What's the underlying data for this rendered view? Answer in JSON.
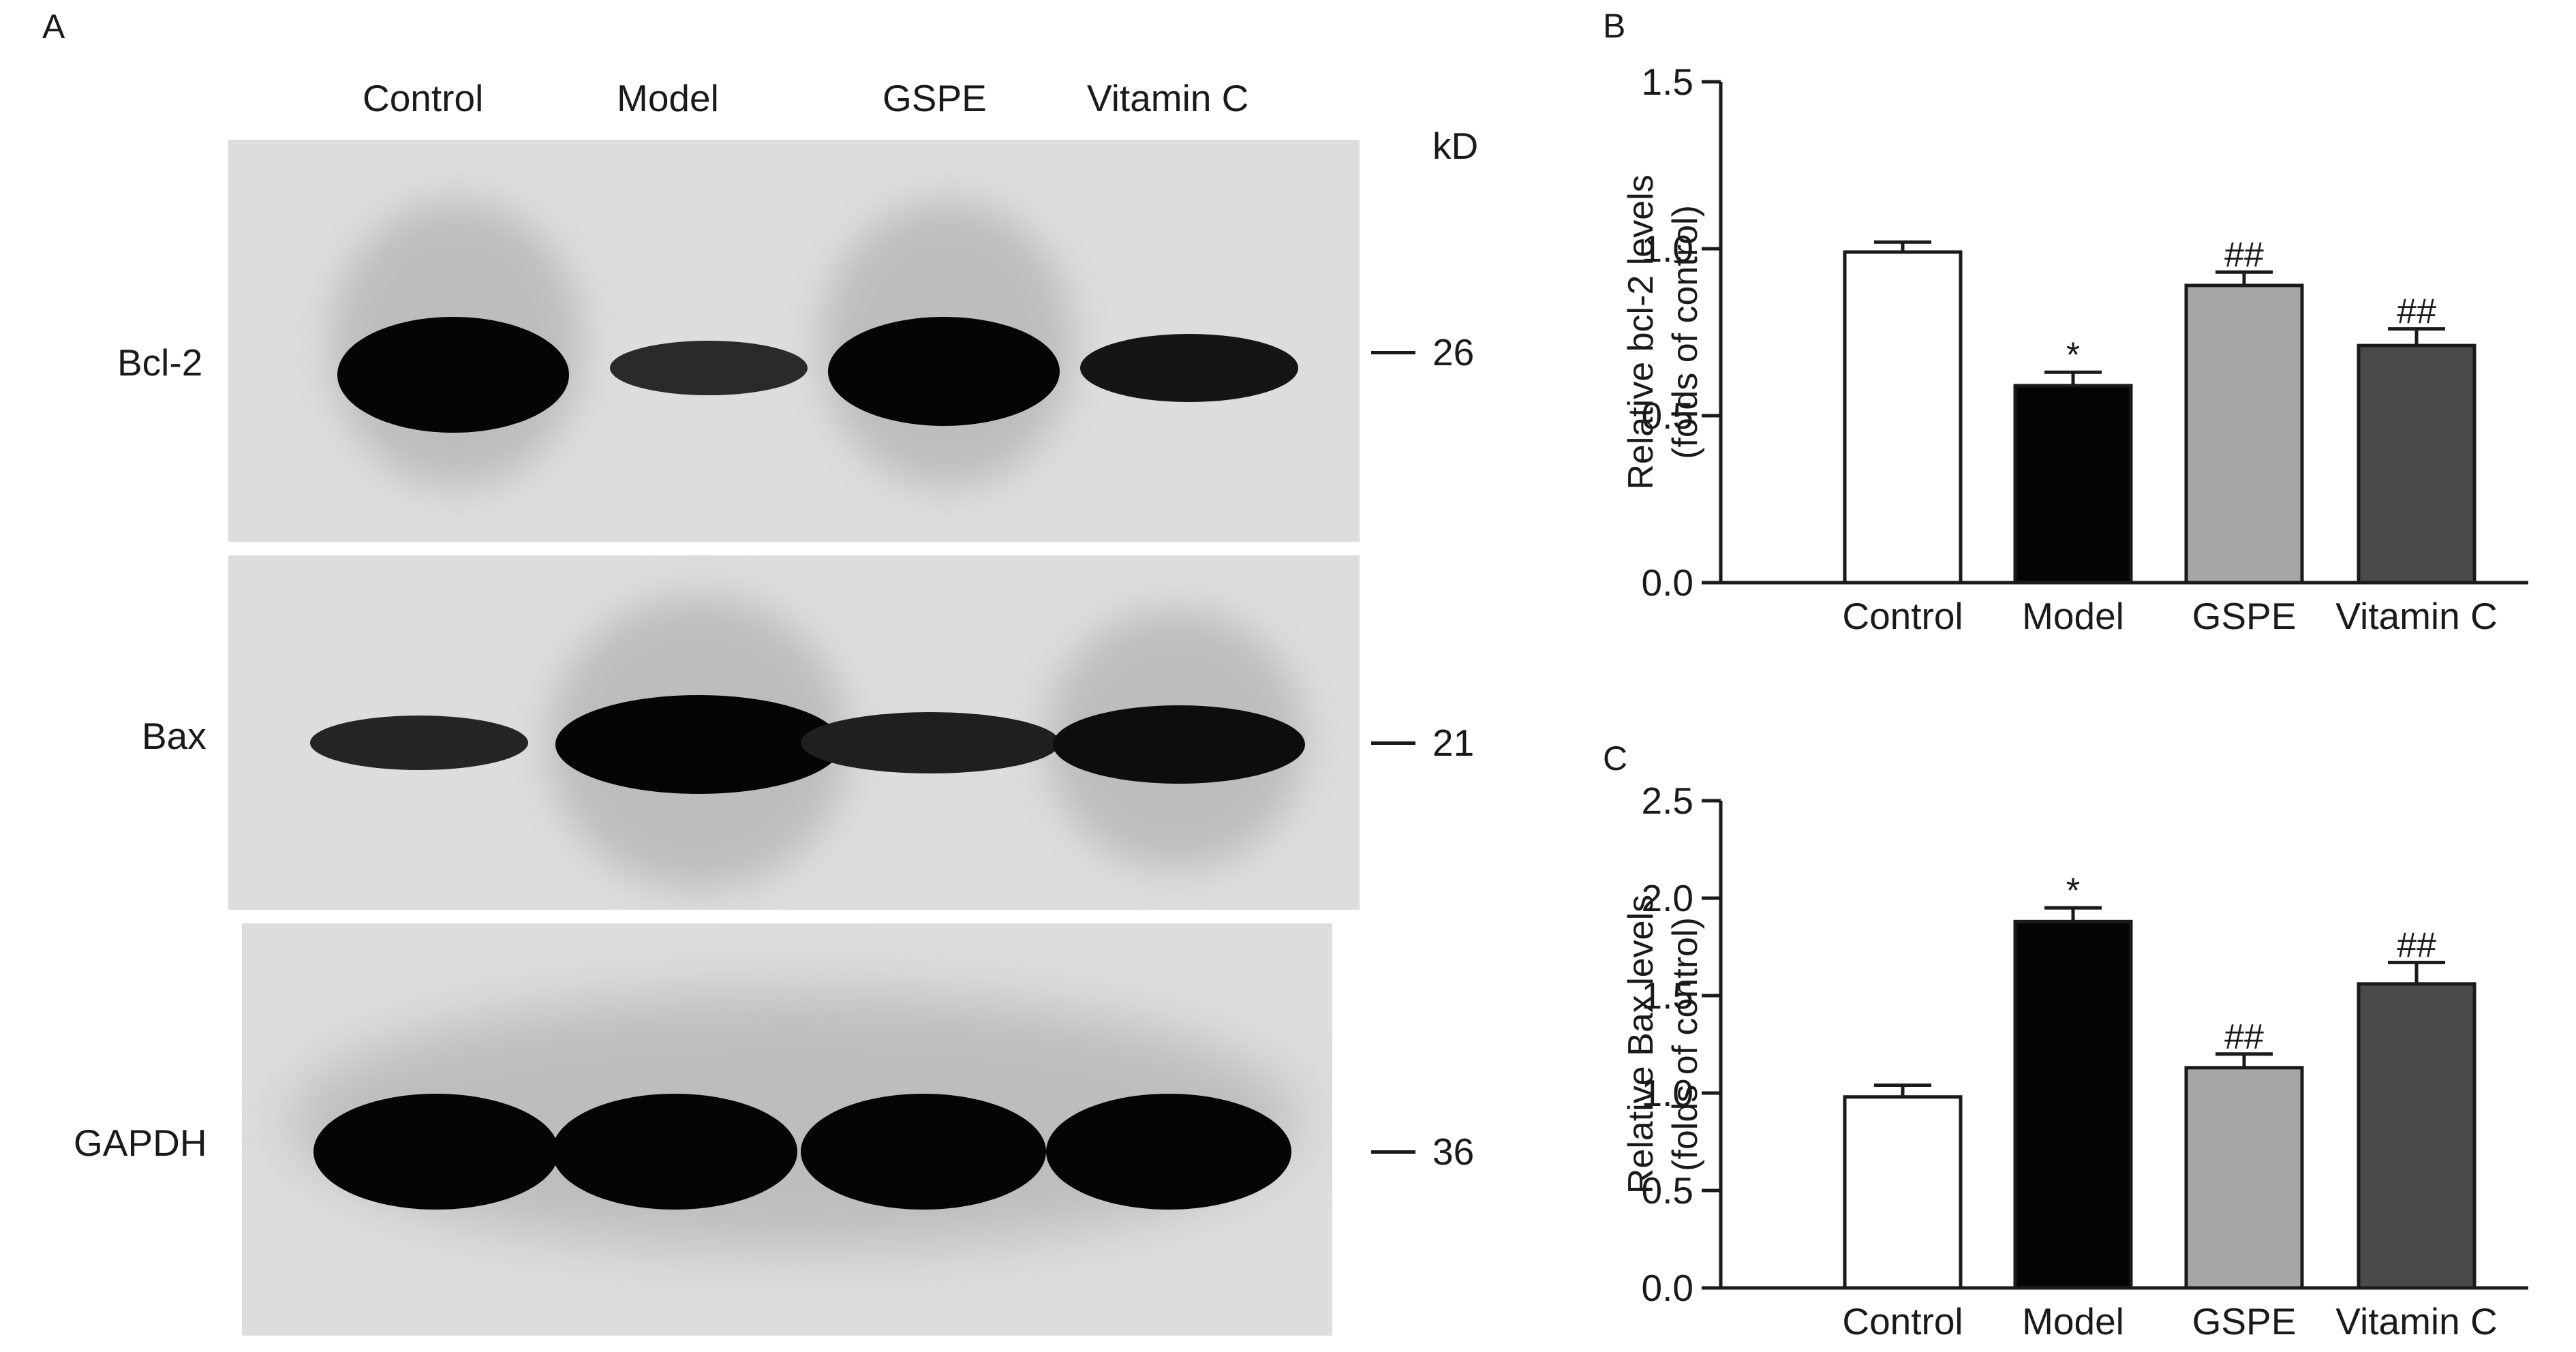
{
  "panel_a": {
    "letter": "A",
    "lanes": [
      "Control",
      "Model",
      "GSPE",
      "Vitamin C"
    ],
    "kd_unit": "kD",
    "rows": [
      {
        "protein": "Bcl-2",
        "marker": "26",
        "band_darkness": [
          1.0,
          0.55,
          0.95,
          0.7
        ]
      },
      {
        "protein": "Bax",
        "marker": "21",
        "band_darkness": [
          0.6,
          1.0,
          0.65,
          0.85
        ]
      },
      {
        "protein": "GAPDH",
        "marker": "36",
        "band_darkness": [
          1.0,
          1.0,
          1.0,
          1.0
        ]
      }
    ]
  },
  "chart_data": [
    {
      "panel": "B",
      "type": "bar",
      "categories": [
        "Control",
        "Model",
        "GSPE",
        "Vitamin C"
      ],
      "values": [
        0.99,
        0.59,
        0.89,
        0.71
      ],
      "errors": [
        0.03,
        0.04,
        0.04,
        0.05
      ],
      "annotations": [
        "",
        "*",
        "##",
        "##"
      ],
      "bar_colors": [
        "#ffffff",
        "#050505",
        "#a6a6a6",
        "#4a4a4a"
      ],
      "ylabel_lines": [
        "Relative bcl-2 levels",
        "(folds of control)"
      ],
      "yticks": [
        "0.0",
        "0.5",
        "1.0",
        "1.5"
      ],
      "ylim": [
        0,
        1.5
      ]
    },
    {
      "panel": "C",
      "type": "bar",
      "categories": [
        "Control",
        "Model",
        "GSPE",
        "Vitamin C"
      ],
      "values": [
        0.98,
        1.88,
        1.13,
        1.56
      ],
      "errors": [
        0.06,
        0.07,
        0.07,
        0.11
      ],
      "annotations": [
        "",
        "*",
        "##",
        "##"
      ],
      "bar_colors": [
        "#ffffff",
        "#050505",
        "#a6a6a6",
        "#4a4a4a"
      ],
      "ylabel_lines": [
        "Relative Bax levels",
        "(folds of control)"
      ],
      "yticks": [
        "0.0",
        "0.5",
        "1.0",
        "1.5",
        "2.0",
        "2.5"
      ],
      "ylim": [
        0,
        2.5
      ]
    }
  ]
}
